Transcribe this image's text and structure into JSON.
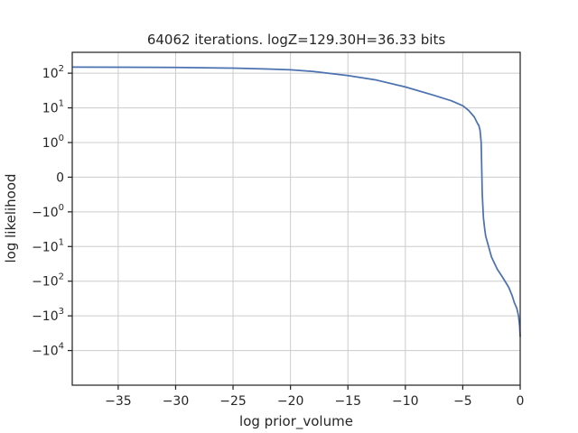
{
  "chart_data": {
    "type": "line",
    "title": "64062 iterations. logZ=129.30H=36.33 bits",
    "xlabel": "log prior_volume",
    "ylabel": "log likelihood",
    "xlim": [
      -39,
      0
    ],
    "xticks": [
      -35,
      -30,
      -25,
      -20,
      -15,
      -10,
      -5,
      0
    ],
    "x_tick_labels": [
      "−35",
      "−30",
      "−25",
      "−20",
      "−15",
      "−10",
      "−5",
      "0"
    ],
    "y_scale": "symlog",
    "y_linthresh": 1,
    "ylim": [
      -100000,
      400
    ],
    "yticks": [
      100,
      10,
      1,
      0,
      -1,
      -10,
      -100,
      -1000,
      -10000
    ],
    "y_tick_labels": [
      {
        "base": "10",
        "exp": "2"
      },
      {
        "base": "10",
        "exp": "1"
      },
      {
        "base": "10",
        "exp": "0"
      },
      {
        "base": "0",
        "exp": ""
      },
      {
        "base": "−10",
        "exp": "0"
      },
      {
        "base": "−10",
        "exp": "1"
      },
      {
        "base": "−10",
        "exp": "2"
      },
      {
        "base": "−10",
        "exp": "3"
      },
      {
        "base": "−10",
        "exp": "4"
      }
    ],
    "grid": true,
    "series": [
      {
        "color": "#4c72b0",
        "x": [
          -39,
          -35,
          -30,
          -25,
          -22,
          -20,
          -18,
          -15,
          -12.5,
          -10,
          -7.5,
          -6,
          -5,
          -4.5,
          -4,
          -3.7,
          -3.6,
          -3.5,
          -3.4,
          -3.3,
          -3.2,
          -3.1,
          -3.0,
          -2.5,
          -2.0,
          -1.5,
          -1.0,
          -0.7,
          -0.5,
          -0.3,
          -0.15,
          -0.05,
          0
        ],
        "y": [
          150,
          149,
          147,
          140,
          132,
          125,
          112,
          85,
          63,
          40,
          23,
          16,
          11.5,
          8.5,
          5.5,
          3.5,
          3.1,
          2.3,
          1.0,
          -0.5,
          -1.5,
          -3.0,
          -5.0,
          -20,
          -45,
          -80,
          -150,
          -260,
          -420,
          -600,
          -1000,
          -2000,
          -4000
        ]
      }
    ]
  }
}
